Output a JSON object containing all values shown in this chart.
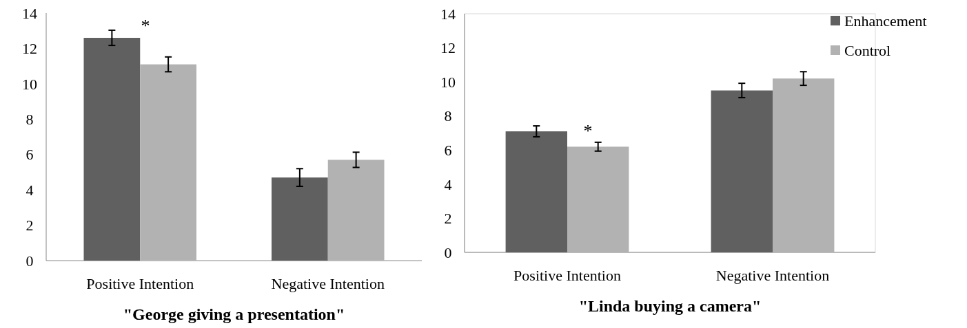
{
  "chart_data": [
    {
      "type": "bar",
      "title": "\"George giving a presentation\"",
      "categories": [
        "Positive Intention",
        "Negative Intention"
      ],
      "series": [
        {
          "color": "#606060",
          "values": [
            12.6,
            4.7
          ],
          "errors": [
            0.43,
            0.5
          ]
        },
        {
          "color": "#b2b2b2",
          "values": [
            11.1,
            5.7
          ],
          "errors": [
            0.42,
            0.43
          ]
        }
      ],
      "ylim": [
        0,
        14
      ],
      "yticks": [
        0,
        2,
        4,
        6,
        8,
        10,
        12,
        14
      ],
      "grid": false,
      "legend": false,
      "annotations": [
        "*"
      ]
    },
    {
      "type": "bar",
      "title": "\"Linda buying a camera\"",
      "categories": [
        "Positive Intention",
        "Negative Intention"
      ],
      "series": [
        {
          "name": "Enhancement",
          "color": "#606060",
          "values": [
            7.1,
            9.5
          ],
          "errors": [
            0.32,
            0.42
          ]
        },
        {
          "name": "Control",
          "color": "#b2b2b2",
          "values": [
            6.2,
            10.2
          ],
          "errors": [
            0.26,
            0.4
          ]
        }
      ],
      "ylim": [
        0,
        14
      ],
      "yticks": [
        0,
        2,
        4,
        6,
        8,
        10,
        12,
        14
      ],
      "grid": false,
      "legend": "top right",
      "annotations": [
        "*"
      ]
    }
  ]
}
